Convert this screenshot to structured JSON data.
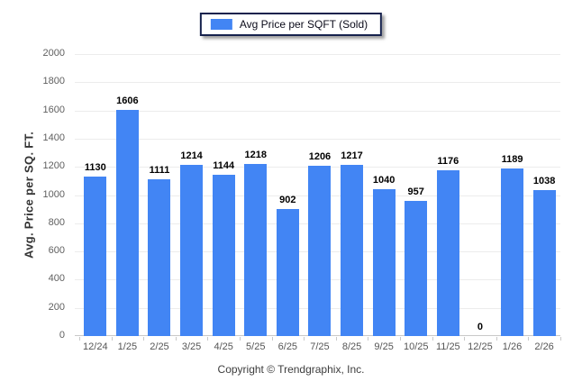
{
  "legend": {
    "label": "Avg Price per SQFT (Sold)",
    "swatch_color": "#4285F4"
  },
  "chart_data": {
    "type": "bar",
    "title": "",
    "categories": [
      "12/24",
      "1/25",
      "2/25",
      "3/25",
      "4/25",
      "5/25",
      "6/25",
      "7/25",
      "8/25",
      "9/25",
      "10/25",
      "11/25",
      "12/25",
      "1/26",
      "2/26"
    ],
    "values": [
      1130,
      1606,
      1111,
      1214,
      1144,
      1218,
      902,
      1206,
      1217,
      1040,
      957,
      1176,
      0,
      1189,
      1038
    ],
    "series_name": "Avg Price per SQFT (Sold)",
    "xlabel": "",
    "ylabel": "Avg. Price per SQ. FT.",
    "ylim": [
      0,
      2000
    ],
    "yticks": [
      0,
      200,
      400,
      600,
      800,
      1000,
      1200,
      1400,
      1600,
      1800,
      2000
    ],
    "grid": "horizontal",
    "legend_position": "top-center",
    "bar_color": "#4285F4",
    "value_labels": true
  },
  "footer": {
    "copyright": "Copyright © Trendgraphix, Inc."
  }
}
